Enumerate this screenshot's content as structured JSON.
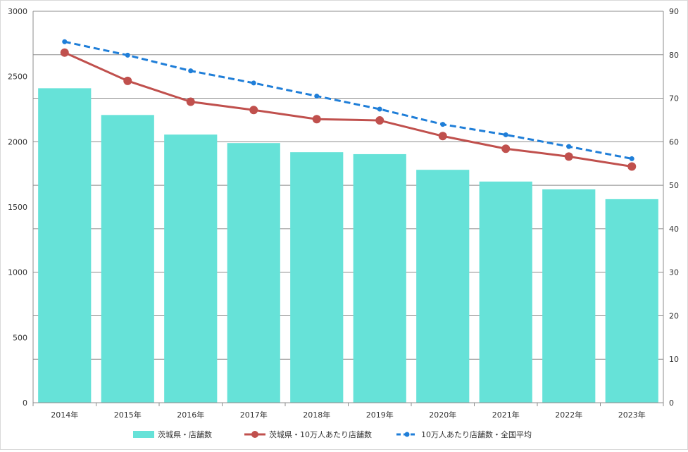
{
  "chart_data": {
    "type": "bar",
    "categories": [
      "2014年",
      "2015年",
      "2016年",
      "2017年",
      "2018年",
      "2019年",
      "2020年",
      "2021年",
      "2022年",
      "2023年"
    ],
    "series": [
      {
        "name": "茨城県・店舗数",
        "type": "bar",
        "axis": "left",
        "color": "#66e2d8",
        "values": [
          2410,
          2205,
          2055,
          1990,
          1920,
          1905,
          1785,
          1695,
          1635,
          1560
        ]
      },
      {
        "name": "茨城県・10万人あたり店舗数",
        "type": "line",
        "axis": "right",
        "color": "#c0504d",
        "line_style": "solid",
        "marker": "circle",
        "values": [
          80.5,
          74.0,
          69.2,
          67.3,
          65.2,
          64.9,
          61.3,
          58.4,
          56.6,
          54.3
        ]
      },
      {
        "name": "10万人あたり店舗数・全国平均",
        "type": "line",
        "axis": "right",
        "color": "#1f7ed8",
        "line_style": "dashed",
        "marker": "circle",
        "values": [
          83.0,
          79.9,
          76.3,
          73.5,
          70.5,
          67.5,
          64.0,
          61.6,
          58.9,
          56.1
        ]
      }
    ],
    "y_left": {
      "min": 0,
      "max": 3000,
      "ticks": [
        "0",
        "500",
        "1000",
        "1500",
        "2000",
        "2500",
        "3000"
      ]
    },
    "y_right": {
      "min": 0,
      "max": 90,
      "ticks": [
        "0",
        "10",
        "20",
        "30",
        "40",
        "50",
        "60",
        "70",
        "80",
        "90"
      ]
    },
    "title": "",
    "xlabel": "",
    "ylabel": "",
    "grid": true,
    "legend_position": "bottom"
  }
}
